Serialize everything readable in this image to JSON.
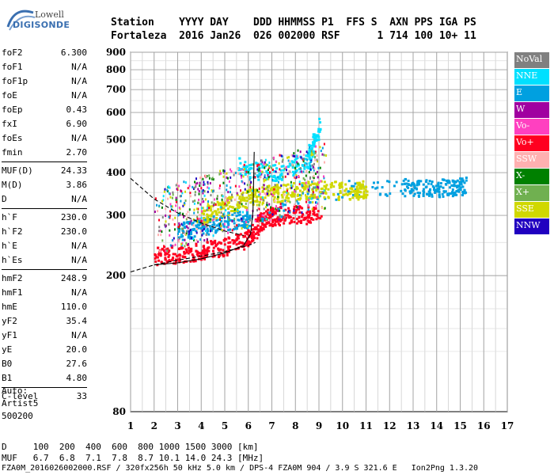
{
  "logo": {
    "line1": "Lowell",
    "line2": "DIGISONDE"
  },
  "header": {
    "line1": "Station    YYYY DAY    DDD HHMMSS P1  FFS S  AXN PPS IGA PS",
    "line2": "Fortaleza  2016 Jan26  026 002000 RSF      1 714 100 10+ 11"
  },
  "params": [
    [
      {
        "k": "foF2",
        "v": "6.300"
      },
      {
        "k": "foF1",
        "v": "N/A"
      },
      {
        "k": "foF1p",
        "v": "N/A"
      },
      {
        "k": "foE",
        "v": "N/A"
      },
      {
        "k": "foEp",
        "v": "0.43"
      },
      {
        "k": "fxI",
        "v": "6.90"
      },
      {
        "k": "foEs",
        "v": "N/A"
      },
      {
        "k": "fmin",
        "v": "2.70"
      }
    ],
    [
      {
        "k": "MUF(D)",
        "v": "24.33"
      },
      {
        "k": "M(D)",
        "v": "3.86"
      },
      {
        "k": "D",
        "v": "N/A"
      }
    ],
    [
      {
        "k": "h`F",
        "v": "230.0"
      },
      {
        "k": "h`F2",
        "v": "230.0"
      },
      {
        "k": "h`E",
        "v": "N/A"
      },
      {
        "k": "h`Es",
        "v": "N/A"
      }
    ],
    [
      {
        "k": "hmF2",
        "v": "248.9"
      },
      {
        "k": "hmF1",
        "v": "N/A"
      },
      {
        "k": "hmE",
        "v": "110.0"
      },
      {
        "k": "yF2",
        "v": "35.4"
      },
      {
        "k": "yF1",
        "v": "N/A"
      },
      {
        "k": "yE",
        "v": "20.0"
      },
      {
        "k": "B0",
        "v": "27.6"
      },
      {
        "k": "B1",
        "v": "4.80"
      }
    ],
    [
      {
        "k": "C-level",
        "v": "33"
      }
    ]
  ],
  "auto": {
    "line1": "Auto:",
    "line2": "Artist5",
    "line3": "500200"
  },
  "legend": [
    {
      "label": "NoVal",
      "color": "#808080"
    },
    {
      "label": "NNE",
      "color": "#00e0ff"
    },
    {
      "label": "E",
      "color": "#00a0e0"
    },
    {
      "label": "W",
      "color": "#a000a0"
    },
    {
      "label": "Vo-",
      "color": "#ff40c0"
    },
    {
      "label": "Vo+",
      "color": "#ff0020"
    },
    {
      "label": "SSW",
      "color": "#ffb0b0"
    },
    {
      "label": "X-",
      "color": "#008000"
    },
    {
      "label": "X+",
      "color": "#70b050"
    },
    {
      "label": "SSE",
      "color": "#d0d800"
    },
    {
      "label": "NNW",
      "color": "#2000c0"
    }
  ],
  "chart_data": {
    "type": "scatter",
    "title": "",
    "xlim": [
      1,
      17
    ],
    "ylim": [
      80,
      900
    ],
    "x_ticks": [
      "1",
      "2",
      "3",
      "4",
      "5",
      "6",
      "7",
      "8",
      "9",
      "10",
      "11",
      "12",
      "13",
      "14",
      "15",
      "16",
      "17"
    ],
    "y_ticks": [
      "80",
      "200",
      "300",
      "400",
      "500",
      "600",
      "700",
      "800",
      "900"
    ],
    "x_scale": "linear",
    "y_scale": "log",
    "grid": true,
    "legend_position": "right",
    "series": [
      {
        "name": "Vo+",
        "values": [
          [
            2.0,
            230
          ],
          [
            3.0,
            232
          ],
          [
            4.0,
            238
          ],
          [
            5.0,
            245
          ],
          [
            6.0,
            260
          ],
          [
            6.5,
            290
          ],
          [
            7.0,
            300
          ],
          [
            8.0,
            305
          ],
          [
            9.0,
            300
          ]
        ]
      },
      {
        "name": "E",
        "values": [
          [
            3.0,
            270
          ],
          [
            4.0,
            280
          ],
          [
            5.0,
            290
          ],
          [
            6.0,
            295
          ],
          [
            10.2,
            360
          ],
          [
            12.5,
            365
          ],
          [
            13.5,
            362
          ],
          [
            14.5,
            365
          ],
          [
            15.2,
            368
          ]
        ]
      },
      {
        "name": "SSE",
        "values": [
          [
            4.0,
            300
          ],
          [
            5.0,
            320
          ],
          [
            6.0,
            340
          ],
          [
            7.0,
            350
          ],
          [
            8.0,
            355
          ],
          [
            9.0,
            360
          ],
          [
            10.5,
            355
          ],
          [
            11.0,
            360
          ]
        ]
      },
      {
        "name": "NNE",
        "values": [
          [
            5.5,
            420
          ],
          [
            7.0,
            400
          ],
          [
            8.5,
            430
          ],
          [
            9.0,
            560
          ]
        ]
      }
    ],
    "lines": [
      {
        "name": "dashed",
        "values": [
          [
            1,
            205
          ],
          [
            2,
            215
          ],
          [
            3,
            222
          ],
          [
            4,
            228
          ],
          [
            5,
            235
          ],
          [
            6,
            245
          ],
          [
            6.3,
            250
          ]
        ]
      },
      {
        "name": "dashed-upper",
        "values": [
          [
            1,
            385
          ],
          [
            2,
            335
          ],
          [
            3,
            305
          ],
          [
            4,
            285
          ],
          [
            5,
            270
          ],
          [
            5.8,
            262
          ]
        ]
      },
      {
        "name": "solid-profile",
        "values": [
          [
            2,
            215
          ],
          [
            3,
            218
          ],
          [
            4,
            224
          ],
          [
            5,
            233
          ],
          [
            5.8,
            245
          ],
          [
            6.1,
            265
          ],
          [
            6.2,
            310
          ],
          [
            6.25,
            460
          ]
        ]
      }
    ]
  },
  "bottom": {
    "line1": "D     100  200  400  600  800 1000 1500 3000 [km]",
    "line2": "MUF   6.7  6.8  7.1  7.8  8.7 10.1 14.0 24.3 [MHz]"
  },
  "footer": "FZA0M_2016026002000.RSF / 320fx256h 50 kHz 5.0 km / DPS-4 FZA0M 904 / 3.9 S 321.6 E   Ion2Png 1.3.20"
}
